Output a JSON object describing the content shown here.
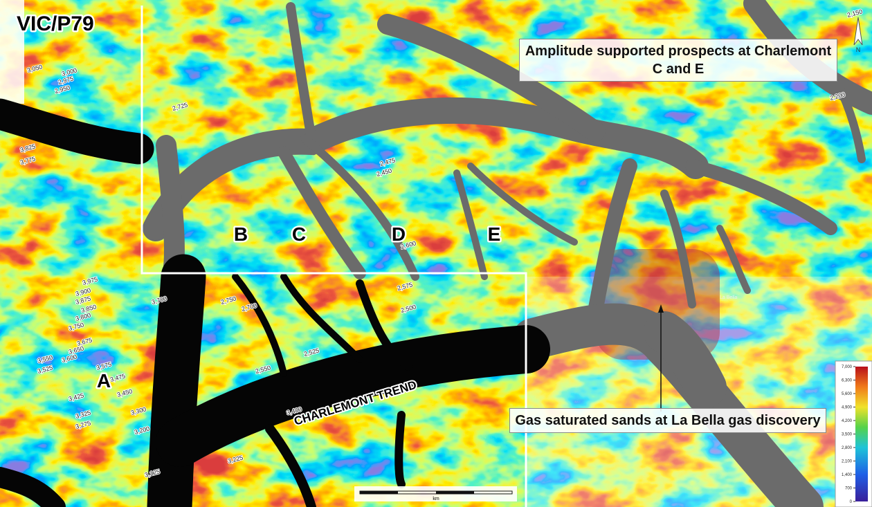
{
  "title": "VIC/P79",
  "callouts": {
    "prospects": "Amplitude supported prospects at Charlemont C and E",
    "discovery": "Gas saturated sands at La Bella gas discovery"
  },
  "prospects": [
    "A",
    "B",
    "C",
    "D",
    "E"
  ],
  "trend_label": "CHARLEMONT TREND",
  "discovery_label": "La Bella",
  "north": "N",
  "scale_unit": "km",
  "color_scale": {
    "ticks": [
      {
        "value": 7000,
        "label": "7,000"
      },
      {
        "value": 6300,
        "label": "6,300"
      },
      {
        "value": 5600,
        "label": "5,600"
      },
      {
        "value": 4900,
        "label": "4,900"
      },
      {
        "value": 4200,
        "label": "4,200"
      },
      {
        "value": 3500,
        "label": "3,500"
      },
      {
        "value": 2800,
        "label": "2,800"
      },
      {
        "value": 2100,
        "label": "2,100"
      },
      {
        "value": 1400,
        "label": "1,400"
      },
      {
        "value": 700,
        "label": "700"
      },
      0
    ],
    "lim": [
      0,
      7000
    ]
  },
  "contour_labels": [
    "3,050",
    "3,000",
    "2,975",
    "2,950",
    "3,825",
    "3,775",
    "3,975",
    "3,900",
    "3,875",
    "3,850",
    "3,800",
    "3,750",
    "3,675",
    "3,650",
    "3,600",
    "3,575",
    "3,550",
    "3,525",
    "3,475",
    "3,450",
    "3,425",
    "3,325",
    "3,300",
    "3,275",
    "3,200",
    "3,125",
    "2,750",
    "2,700",
    "2,550",
    "2,525",
    "2,575",
    "2,500",
    "2,475",
    "2,450",
    "2,600",
    "2,725",
    "3,400",
    "3,225",
    "2,150",
    "2,200",
    "3,700"
  ]
}
